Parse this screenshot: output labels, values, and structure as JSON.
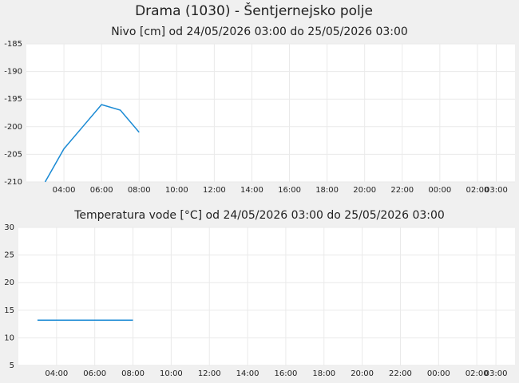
{
  "title": "Drama (1030) - Šentjernejsko polje",
  "chart_data": [
    {
      "type": "line",
      "title": "Nivo [cm] od 24/05/2026 03:00 do 25/05/2026 03:00",
      "x": [
        3,
        4,
        5,
        6,
        7,
        8
      ],
      "series": [
        {
          "name": "Nivo",
          "color": "#1a8ad4",
          "values": [
            -210,
            -204,
            -200,
            -196,
            -197,
            -201
          ]
        }
      ],
      "xlim": [
        2,
        28
      ],
      "xticks": [
        {
          "value": 4,
          "label": "04:00"
        },
        {
          "value": 6,
          "label": "06:00"
        },
        {
          "value": 8,
          "label": "08:00"
        },
        {
          "value": 10,
          "label": "10:00"
        },
        {
          "value": 12,
          "label": "12:00"
        },
        {
          "value": 14,
          "label": "14:00"
        },
        {
          "value": 16,
          "label": "16:00"
        },
        {
          "value": 18,
          "label": "18:00"
        },
        {
          "value": 20,
          "label": "20:00"
        },
        {
          "value": 22,
          "label": "22:00"
        },
        {
          "value": 24,
          "label": "00:00"
        },
        {
          "value": 26,
          "label": "02:00"
        },
        {
          "value": 27,
          "label": "03:00"
        }
      ],
      "ylim": [
        -210,
        -185
      ],
      "yticks": [
        -210,
        -205,
        -200,
        -195,
        -190,
        -185
      ],
      "grid": true
    },
    {
      "type": "line",
      "title": "Temperatura vode [°C] od 24/05/2026 03:00 do 25/05/2026 03:00",
      "x": [
        3,
        8
      ],
      "series": [
        {
          "name": "Temperatura vode",
          "color": "#1a8ad4",
          "values": [
            13.2,
            13.2
          ]
        }
      ],
      "xlim": [
        2,
        28
      ],
      "xticks": [
        {
          "value": 4,
          "label": "04:00"
        },
        {
          "value": 6,
          "label": "06:00"
        },
        {
          "value": 8,
          "label": "08:00"
        },
        {
          "value": 10,
          "label": "10:00"
        },
        {
          "value": 12,
          "label": "12:00"
        },
        {
          "value": 14,
          "label": "14:00"
        },
        {
          "value": 16,
          "label": "16:00"
        },
        {
          "value": 18,
          "label": "18:00"
        },
        {
          "value": 20,
          "label": "20:00"
        },
        {
          "value": 22,
          "label": "22:00"
        },
        {
          "value": 24,
          "label": "00:00"
        },
        {
          "value": 26,
          "label": "02:00"
        },
        {
          "value": 27,
          "label": "03:00"
        }
      ],
      "ylim": [
        5,
        30
      ],
      "yticks": [
        5,
        10,
        15,
        20,
        25,
        30
      ],
      "grid": true
    }
  ]
}
